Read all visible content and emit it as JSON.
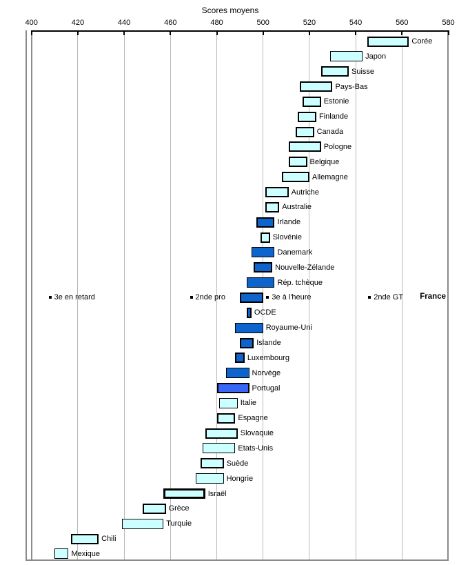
{
  "chart_data": {
    "type": "bar",
    "variant": "horizontal-interval-bars",
    "title": "Scores moyens",
    "x_axis": {
      "min": 400,
      "max": 580,
      "tick_step": 20,
      "ticks": [
        400,
        420,
        440,
        460,
        480,
        500,
        520,
        540,
        560,
        580
      ],
      "position": "top",
      "grid": true
    },
    "colors": {
      "cyan": "#CCFFFF",
      "blue": "#0D64CC",
      "blue2": "#3A66F5",
      "bar_border": "#000000",
      "gridline": "#B8B8B8",
      "gridline_400": "#8C8C8C",
      "frame": "#8A8A8A",
      "axis": "#000000"
    },
    "rows": [
      {
        "name": "Corée",
        "low": 545,
        "high": 563,
        "fill": "cyan",
        "bw": 2
      },
      {
        "name": "Japon",
        "low": 529,
        "high": 543,
        "fill": "cyan",
        "bw": 1
      },
      {
        "name": "Suisse",
        "low": 525,
        "high": 537,
        "fill": "cyan",
        "bw": 2
      },
      {
        "name": "Pays-Bas",
        "low": 516,
        "high": 530,
        "fill": "cyan",
        "bw": 2
      },
      {
        "name": "Estonie",
        "low": 517,
        "high": 525,
        "fill": "cyan",
        "bw": 2
      },
      {
        "name": "Finlande",
        "low": 515,
        "high": 523,
        "fill": "cyan",
        "bw": 2
      },
      {
        "name": "Canada",
        "low": 514,
        "high": 522,
        "fill": "cyan",
        "bw": 2
      },
      {
        "name": "Pologne",
        "low": 511,
        "high": 525,
        "fill": "cyan",
        "bw": 2
      },
      {
        "name": "Belgique",
        "low": 511,
        "high": 519,
        "fill": "cyan",
        "bw": 2
      },
      {
        "name": "Allemagne",
        "low": 508,
        "high": 520,
        "fill": "cyan",
        "bw": 2
      },
      {
        "name": "Autriche",
        "low": 501,
        "high": 511,
        "fill": "cyan",
        "bw": 2
      },
      {
        "name": "Australie",
        "low": 501,
        "high": 507,
        "fill": "cyan",
        "bw": 2
      },
      {
        "name": "Irlande",
        "low": 497,
        "high": 505,
        "fill": "blue",
        "bw": 2
      },
      {
        "name": "Slovénie",
        "low": 499,
        "high": 503,
        "fill": "cyan",
        "bw": 2
      },
      {
        "name": "Danemark",
        "low": 495,
        "high": 505,
        "fill": "blue",
        "bw": 1
      },
      {
        "name": "Nouvelle-Zélande",
        "low": 496,
        "high": 504,
        "fill": "blue",
        "bw": 2
      },
      {
        "name": "Rép. tchèque",
        "low": 493,
        "high": 505,
        "fill": "blue",
        "bw": 1
      },
      {
        "name": "France",
        "low": 490,
        "high": 500,
        "fill": "blue",
        "bw": 2
      },
      {
        "name": "OCDE",
        "low": 493,
        "high": 495,
        "fill": "blue",
        "bw": 2
      },
      {
        "name": "Royaume-Uni",
        "low": 488,
        "high": 500,
        "fill": "blue",
        "bw": 1
      },
      {
        "name": "Islande",
        "low": 490,
        "high": 496,
        "fill": "blue",
        "bw": 2
      },
      {
        "name": "Luxembourg",
        "low": 488,
        "high": 492,
        "fill": "blue",
        "bw": 2
      },
      {
        "name": "Norvège",
        "low": 484,
        "high": 494,
        "fill": "blue",
        "bw": 1
      },
      {
        "name": "Portugal",
        "low": 480,
        "high": 494,
        "fill": "blue2",
        "bw": 2
      },
      {
        "name": "Italie",
        "low": 481,
        "high": 489,
        "fill": "cyan",
        "bw": 1
      },
      {
        "name": "Espagne",
        "low": 480,
        "high": 488,
        "fill": "cyan",
        "bw": 2
      },
      {
        "name": "Slovaquie",
        "low": 475,
        "high": 489,
        "fill": "cyan",
        "bw": 2
      },
      {
        "name": "Etats-Unis",
        "low": 474,
        "high": 488,
        "fill": "cyan",
        "bw": 1
      },
      {
        "name": "Suède",
        "low": 473,
        "high": 483,
        "fill": "cyan",
        "bw": 2
      },
      {
        "name": "Hongrie",
        "low": 471,
        "high": 483,
        "fill": "cyan",
        "bw": 1
      },
      {
        "name": "Israël",
        "low": 457,
        "high": 475,
        "fill": "cyan",
        "bw": 3
      },
      {
        "name": "Grèce",
        "low": 448,
        "high": 458,
        "fill": "cyan",
        "bw": 2
      },
      {
        "name": "Turquie",
        "low": 439,
        "high": 457,
        "fill": "cyan",
        "bw": 1
      },
      {
        "name": "Chili",
        "low": 417,
        "high": 429,
        "fill": "cyan",
        "bw": 2
      },
      {
        "name": "Mexique",
        "low": 410,
        "high": 416,
        "fill": "cyan",
        "bw": 1
      }
    ],
    "france_markers": {
      "row_index": 17,
      "points": [
        {
          "label": "3e en retard",
          "value": 408
        },
        {
          "label": "2nde pro",
          "value": 469
        },
        {
          "label": "3e à l'heure",
          "value": 502
        },
        {
          "label": "2nde GT",
          "value": 546
        }
      ],
      "right_label": "France"
    }
  }
}
